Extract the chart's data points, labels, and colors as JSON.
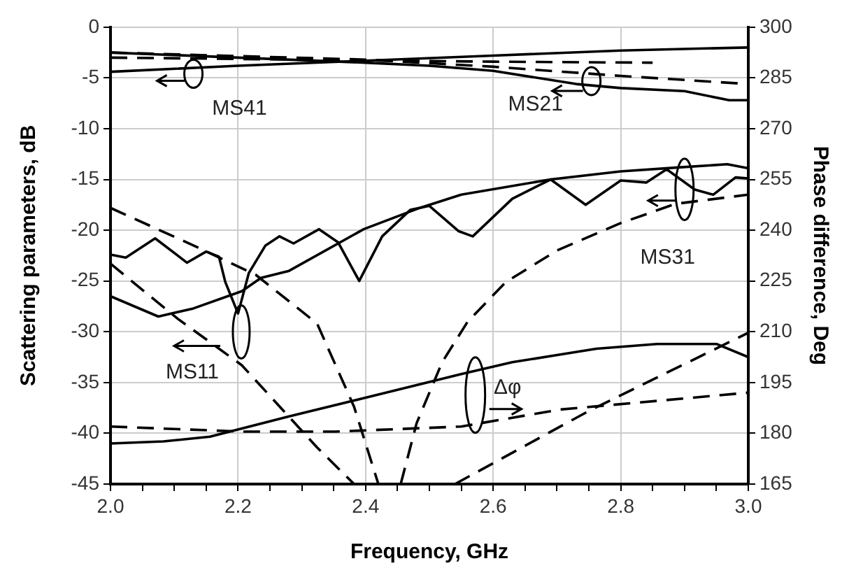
{
  "chart_data": {
    "type": "line",
    "xlabel": "Frequency, GHz",
    "ylabel": "Scattering parameters, dB",
    "y2label": "Phase difference, Deg",
    "xlim": [
      2.0,
      3.0
    ],
    "xticks": [
      {
        "value": 2.0,
        "label": "2.0"
      },
      {
        "value": 2.05,
        "label": null
      },
      {
        "value": 2.1,
        "label": null
      },
      {
        "value": 2.15,
        "label": null
      },
      {
        "value": 2.2,
        "label": "2.2"
      },
      {
        "value": 2.25,
        "label": null
      },
      {
        "value": 2.3,
        "label": null
      },
      {
        "value": 2.35,
        "label": null
      },
      {
        "value": 2.4,
        "label": "2.4"
      },
      {
        "value": 2.45,
        "label": null
      },
      {
        "value": 2.5,
        "label": null
      },
      {
        "value": 2.55,
        "label": null
      },
      {
        "value": 2.6,
        "label": "2.6"
      },
      {
        "value": 2.65,
        "label": null
      },
      {
        "value": 2.7,
        "label": null
      },
      {
        "value": 2.75,
        "label": null
      },
      {
        "value": 2.8,
        "label": "2.8"
      },
      {
        "value": 2.85,
        "label": null
      },
      {
        "value": 2.9,
        "label": null
      },
      {
        "value": 2.95,
        "label": null
      },
      {
        "value": 3.0,
        "label": "3.0"
      }
    ],
    "ylim": [
      -45,
      0
    ],
    "yticks": [
      -45,
      -40,
      -35,
      -30,
      -25,
      -20,
      -15,
      -10,
      -5,
      0
    ],
    "y2lim": [
      165,
      300
    ],
    "y2ticks": [
      165,
      180,
      195,
      210,
      225,
      240,
      255,
      270,
      285,
      300
    ],
    "grid": true,
    "legend": false,
    "marker": "none",
    "series": [
      {
        "color": "#000000",
        "line_style": "solid",
        "x": [
          2.0,
          2.2,
          2.4,
          2.5,
          2.6,
          2.73,
          2.8,
          2.9,
          2.97,
          3.0
        ],
        "values": [
          -2.5,
          -3.0,
          -3.5,
          -3.8,
          -4.3,
          -5.6,
          -6.0,
          -6.3,
          -7.2,
          -7.2
        ]
      },
      {
        "color": "#000000",
        "line_style": "dashed",
        "x": [
          2.0,
          2.4,
          2.6,
          2.8,
          3.0
        ],
        "values": [
          -2.5,
          -3.2,
          -3.9,
          -4.8,
          -5.6
        ]
      },
      {
        "color": "#000000",
        "line_style": "solid",
        "x": [
          2.0,
          2.2,
          2.4,
          2.6,
          2.8,
          3.0
        ],
        "values": [
          -4.4,
          -3.8,
          -3.3,
          -2.8,
          -2.3,
          -2.0
        ]
      },
      {
        "color": "#000000",
        "line_style": "dashed",
        "x": [
          2.0,
          2.3,
          2.6,
          2.85
        ],
        "values": [
          -3.0,
          -3.2,
          -3.4,
          -3.5
        ]
      },
      {
        "color": "#000000",
        "line_style": "solid",
        "x": [
          2.0,
          2.024,
          2.07,
          2.12,
          2.15,
          2.17,
          2.18,
          2.2,
          2.217,
          2.243,
          2.265,
          2.287,
          2.327,
          2.357,
          2.39,
          2.426,
          2.47,
          2.5,
          2.546,
          2.568,
          2.63,
          2.69,
          2.745,
          2.8,
          2.84,
          2.872,
          2.916,
          2.945,
          2.98,
          3.0
        ],
        "values": [
          -22.4,
          -22.7,
          -20.8,
          -23.2,
          -22.1,
          -22.6,
          -25.1,
          -28.2,
          -24.2,
          -21.5,
          -20.6,
          -21.3,
          -19.9,
          -21.2,
          -25.0,
          -20.6,
          -18.0,
          -17.6,
          -20.1,
          -20.6,
          -16.9,
          -15.0,
          -17.5,
          -15.1,
          -15.3,
          -14.0,
          -16.0,
          -16.5,
          -14.8,
          -14.9
        ]
      },
      {
        "color": "#000000",
        "line_style": "solid",
        "x": [
          2.0,
          2.075,
          2.13,
          2.206,
          2.236,
          2.28,
          2.397,
          2.485,
          2.55,
          2.69,
          2.8,
          2.894,
          2.967,
          3.0
        ],
        "values": [
          -26.5,
          -28.5,
          -27.7,
          -26.0,
          -24.7,
          -24.0,
          -19.9,
          -17.8,
          -16.5,
          -15.0,
          -14.2,
          -13.8,
          -13.5,
          -13.9
        ]
      },
      {
        "color": "#000000",
        "line_style": "dashed",
        "x": [
          2.0,
          2.13,
          2.228,
          2.324,
          2.382,
          2.42
        ],
        "values": [
          -17.8,
          -21.5,
          -24.4,
          -29.2,
          -37.4,
          -45
        ]
      },
      {
        "color": "#000000",
        "line_style": "dashed",
        "x": [
          2.455,
          2.48,
          2.52,
          2.56,
          2.62,
          2.7,
          2.8,
          2.886,
          3.0
        ],
        "values": [
          -45,
          -39,
          -33,
          -29,
          -25.1,
          -22,
          -19.3,
          -17.4,
          -16.5
        ]
      },
      {
        "color": "#000000",
        "line_style": "dashed",
        "x": [
          2.0,
          2.105,
          2.206,
          2.324,
          2.382
        ],
        "values": [
          -23.3,
          -28.7,
          -33.3,
          -41.4,
          -45
        ]
      },
      {
        "color": "#000000",
        "line_style": "dashed",
        "x": [
          2.54,
          2.75,
          3.0
        ],
        "values": [
          -45,
          -37.8,
          -30.1
        ]
      },
      {
        "color": "#000000",
        "line_style": "solid",
        "axis": "y2",
        "x": [
          2.0,
          2.083,
          2.156,
          2.28,
          2.41,
          2.55,
          2.63,
          2.762,
          2.857,
          2.95,
          3.0
        ],
        "values": [
          177,
          177.6,
          179,
          185,
          191,
          197.5,
          201,
          205,
          206.4,
          206.4,
          202.5
        ]
      },
      {
        "color": "#000000",
        "line_style": "dashed",
        "axis": "y2",
        "x": [
          2.0,
          2.206,
          2.353,
          2.55,
          2.704,
          3.0
        ],
        "values": [
          182,
          180.5,
          180.5,
          182,
          187,
          192
        ]
      }
    ],
    "annotations": [
      "MS41",
      "MS21",
      "MS31",
      "MS11",
      "Δφ"
    ]
  }
}
